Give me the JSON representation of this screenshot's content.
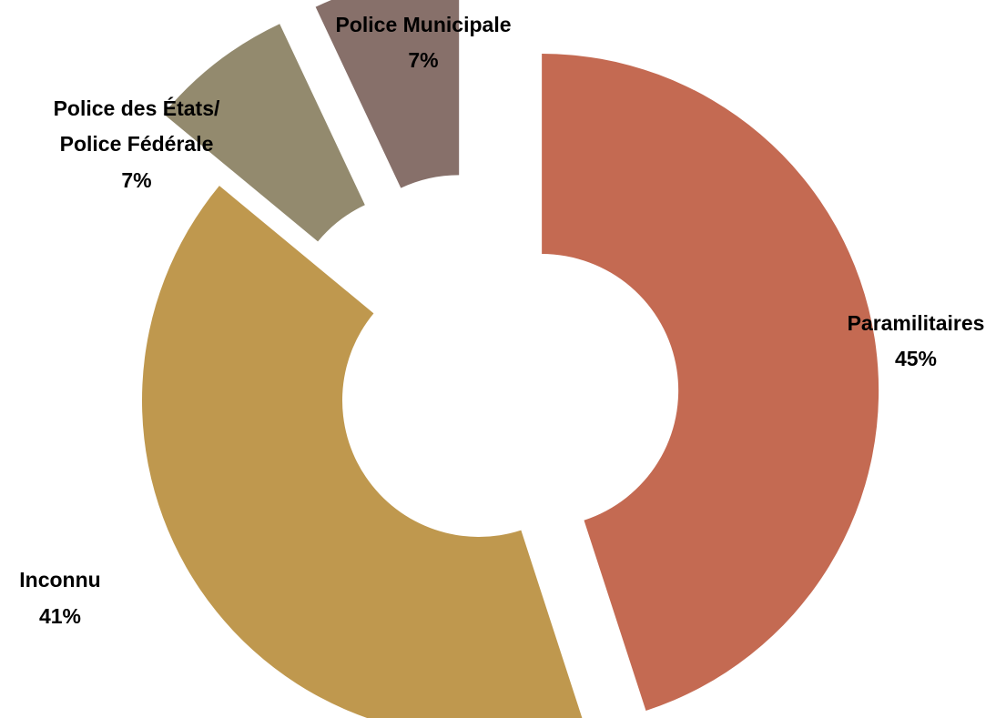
{
  "chart_data": {
    "type": "pie",
    "variant": "donut, exploded slices",
    "title": "",
    "slices": [
      {
        "label": "Paramilitaires",
        "value": 45,
        "value_label": "45%",
        "color": "#c46a52"
      },
      {
        "label": "Inconnu",
        "value": 41,
        "value_label": "41%",
        "color": "#bf984e"
      },
      {
        "label": "Police des États/ Police Fédérale",
        "label_lines": [
          "Police des États/",
          "Police Fédérale"
        ],
        "value": 7,
        "value_label": "7%",
        "color": "#938a6e"
      },
      {
        "label": "Police Municipale",
        "value": 7,
        "value_label": "7%",
        "color": "#87706a"
      }
    ],
    "legend": "none (labels placed next to slices)"
  }
}
